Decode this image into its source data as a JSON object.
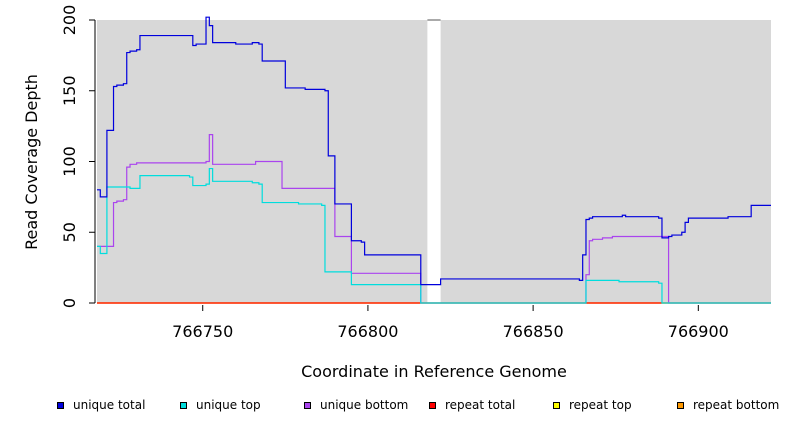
{
  "chart_data": {
    "type": "line",
    "title": "",
    "xlabel": "Coordinate in Reference Genome",
    "ylabel": "Read Coverage Depth",
    "xlim": [
      766718,
      766922
    ],
    "ylim": [
      0,
      200
    ],
    "x_ticks": [
      766750,
      766800,
      766850,
      766900
    ],
    "y_ticks": [
      0,
      50,
      100,
      150,
      200
    ],
    "shaded_regions": [
      [
        766718,
        766818
      ],
      [
        766822,
        766922
      ]
    ],
    "grid": false,
    "legend_position": "bottom",
    "series": [
      {
        "name": "unique total",
        "color": "#0000dd",
        "points": [
          [
            766718,
            80
          ],
          [
            766719,
            75
          ],
          [
            766721,
            122
          ],
          [
            766723,
            153
          ],
          [
            766724,
            154
          ],
          [
            766726,
            155
          ],
          [
            766727,
            177
          ],
          [
            766728,
            178
          ],
          [
            766730,
            179
          ],
          [
            766731,
            189
          ],
          [
            766746,
            189
          ],
          [
            766747,
            182
          ],
          [
            766748,
            183
          ],
          [
            766751,
            202
          ],
          [
            766752,
            196
          ],
          [
            766753,
            184
          ],
          [
            766760,
            183
          ],
          [
            766765,
            184
          ],
          [
            766767,
            183
          ],
          [
            766768,
            171
          ],
          [
            766774,
            171
          ],
          [
            766775,
            152
          ],
          [
            766781,
            151
          ],
          [
            766787,
            150
          ],
          [
            766788,
            104
          ],
          [
            766790,
            70
          ],
          [
            766794,
            70
          ],
          [
            766795,
            44
          ],
          [
            766798,
            43
          ],
          [
            766799,
            34
          ],
          [
            766815,
            34
          ],
          [
            766816,
            13
          ],
          [
            766818,
            13
          ],
          [
            766822,
            17
          ],
          [
            766864,
            16
          ],
          [
            766865,
            34
          ],
          [
            766866,
            59
          ],
          [
            766867,
            60
          ],
          [
            766868,
            61
          ],
          [
            766877,
            62
          ],
          [
            766878,
            61
          ],
          [
            766888,
            60
          ],
          [
            766889,
            46
          ],
          [
            766891,
            47
          ],
          [
            766892,
            48
          ],
          [
            766895,
            50
          ],
          [
            766896,
            57
          ],
          [
            766897,
            60
          ],
          [
            766909,
            61
          ],
          [
            766916,
            69
          ],
          [
            766922,
            69
          ]
        ]
      },
      {
        "name": "unique top",
        "color": "#00dddd",
        "points": [
          [
            766718,
            40
          ],
          [
            766719,
            35
          ],
          [
            766721,
            82
          ],
          [
            766727,
            82
          ],
          [
            766728,
            81
          ],
          [
            766731,
            90
          ],
          [
            766746,
            89
          ],
          [
            766747,
            83
          ],
          [
            766751,
            84
          ],
          [
            766752,
            95
          ],
          [
            766753,
            86
          ],
          [
            766760,
            86
          ],
          [
            766765,
            85
          ],
          [
            766767,
            84
          ],
          [
            766768,
            71
          ],
          [
            766779,
            70
          ],
          [
            766786,
            69
          ],
          [
            766787,
            22
          ],
          [
            766794,
            22
          ],
          [
            766795,
            13
          ],
          [
            766815,
            13
          ],
          [
            766816,
            0
          ],
          [
            766818,
            0
          ],
          [
            766822,
            0
          ],
          [
            766865,
            0
          ],
          [
            766866,
            16
          ],
          [
            766875,
            16
          ],
          [
            766876,
            15
          ],
          [
            766887,
            15
          ],
          [
            766888,
            14
          ],
          [
            766889,
            0
          ],
          [
            766922,
            0
          ]
        ]
      },
      {
        "name": "unique bottom",
        "color": "#aa44ee",
        "points": [
          [
            766718,
            40
          ],
          [
            766722,
            40
          ],
          [
            766723,
            71
          ],
          [
            766724,
            72
          ],
          [
            766726,
            73
          ],
          [
            766727,
            96
          ],
          [
            766728,
            98
          ],
          [
            766730,
            99
          ],
          [
            766748,
            99
          ],
          [
            766751,
            100
          ],
          [
            766752,
            119
          ],
          [
            766753,
            98
          ],
          [
            766764,
            98
          ],
          [
            766766,
            100
          ],
          [
            766773,
            100
          ],
          [
            766774,
            81
          ],
          [
            766789,
            81
          ],
          [
            766790,
            47
          ],
          [
            766794,
            47
          ],
          [
            766795,
            21
          ],
          [
            766815,
            21
          ],
          [
            766816,
            0
          ],
          [
            766818,
            0
          ],
          [
            766822,
            0
          ],
          [
            766865,
            0
          ],
          [
            766866,
            20
          ],
          [
            766867,
            44
          ],
          [
            766868,
            45
          ],
          [
            766871,
            46
          ],
          [
            766874,
            47
          ],
          [
            766888,
            47
          ],
          [
            766889,
            47
          ],
          [
            766891,
            0
          ],
          [
            766922,
            0
          ]
        ]
      },
      {
        "name": "repeat total",
        "color": "#ff0000",
        "points": [
          [
            766718,
            0
          ],
          [
            766922,
            0
          ]
        ]
      },
      {
        "name": "repeat top",
        "color": "#ffff00",
        "points": [
          [
            766718,
            0
          ],
          [
            766922,
            0
          ]
        ]
      },
      {
        "name": "repeat bottom",
        "color": "#ff9900",
        "points": [
          [
            766718,
            0
          ],
          [
            766922,
            0
          ]
        ]
      }
    ]
  }
}
